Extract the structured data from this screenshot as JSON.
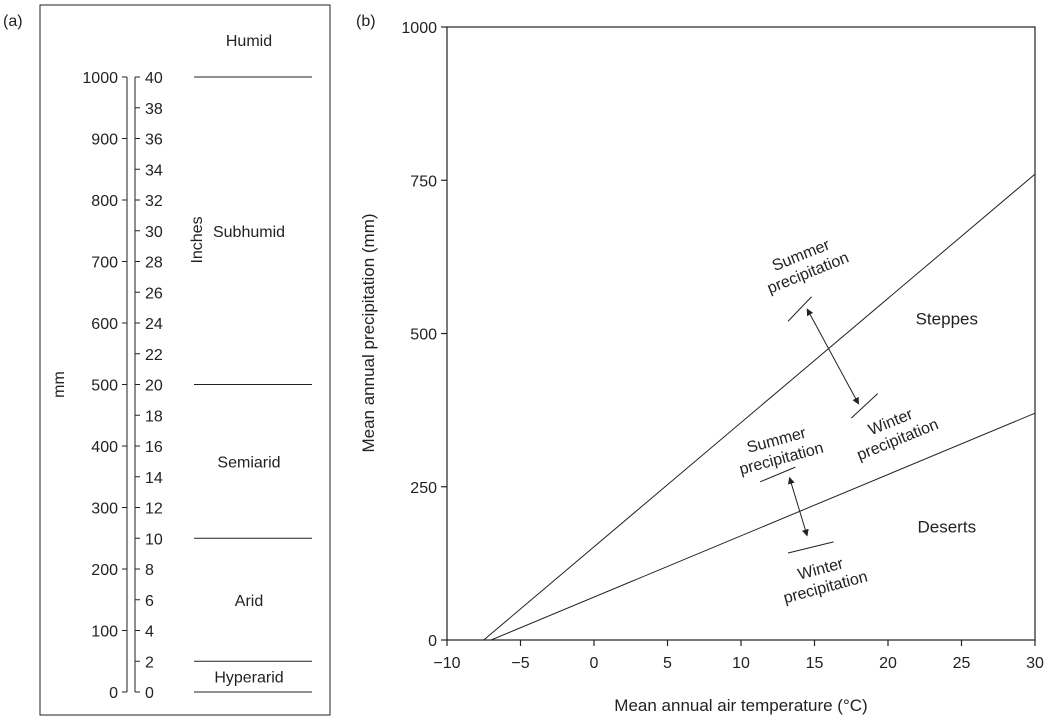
{
  "panel_a": {
    "label": "(a)",
    "left_axis": {
      "label": "mm",
      "ticks": [
        0,
        100,
        200,
        300,
        400,
        500,
        600,
        700,
        800,
        900,
        1000
      ]
    },
    "right_axis": {
      "label": "Inches",
      "ticks": [
        0,
        2,
        4,
        6,
        8,
        10,
        12,
        14,
        16,
        18,
        20,
        22,
        24,
        26,
        28,
        30,
        32,
        34,
        36,
        38,
        40
      ]
    },
    "zones": [
      {
        "name": "Hyperarid",
        "from_mm": 0,
        "to_mm": 50
      },
      {
        "name": "Arid",
        "from_mm": 50,
        "to_mm": 250
      },
      {
        "name": "Semiarid",
        "from_mm": 250,
        "to_mm": 500
      },
      {
        "name": "Subhumid",
        "from_mm": 500,
        "to_mm": 1000
      },
      {
        "name": "Humid",
        "from_mm": 1000,
        "to_mm": null
      }
    ],
    "boundaries_mm": [
      0,
      50,
      250,
      500,
      1000
    ]
  },
  "panel_b": {
    "label": "(b)",
    "chart_data": {
      "type": "line",
      "xlabel": "Mean annual air temperature (°C)",
      "ylabel": "Mean annual precipitation (mm)",
      "xlim": [
        -10,
        30
      ],
      "ylim": [
        0,
        1000
      ],
      "xticks": [
        -10,
        -5,
        0,
        5,
        10,
        15,
        20,
        25,
        30
      ],
      "yticks": [
        0,
        250,
        500,
        750,
        1000
      ],
      "xtick_labels": [
        "−10",
        "−5",
        "0",
        "5",
        "10",
        "15",
        "20",
        "25",
        "30"
      ],
      "series": [
        {
          "x": [
            -7.5,
            30
          ],
          "y": [
            0,
            760
          ]
        },
        {
          "x": [
            -7,
            30
          ],
          "y": [
            0,
            370
          ]
        }
      ],
      "regions": [
        {
          "text": "Steppes",
          "x": 24,
          "y": 515
        },
        {
          "text": "Deserts",
          "x": 24,
          "y": 175
        }
      ],
      "annotations": [
        {
          "top_line1": "Summer",
          "top_line2": "precipitation",
          "bottom_line1": "Winter",
          "bottom_line2": "precipitation",
          "arrow_from": [
            14.5,
            540
          ],
          "arrow_to": [
            18,
            385
          ],
          "top_bar": [
            [
              13.2,
              520
            ],
            [
              14.8,
              560
            ]
          ],
          "bottom_bar": [
            [
              17.5,
              362
            ],
            [
              19.3,
              402
            ]
          ],
          "top_label_at": [
            14.2,
            620
          ],
          "top_label_rotate": -22,
          "bottom_label_at": [
            20.3,
            348
          ],
          "bottom_label_rotate": -22
        },
        {
          "top_line1": "Summer",
          "top_line2": "precipitation",
          "bottom_line1": "Winter",
          "bottom_line2": "precipitation",
          "arrow_from": [
            13.3,
            265
          ],
          "arrow_to": [
            14.5,
            170
          ],
          "top_bar": [
            [
              11.3,
              258
            ],
            [
              13.7,
              282
            ]
          ],
          "bottom_bar": [
            [
              13.2,
              142
            ],
            [
              16.3,
              160
            ]
          ],
          "top_label_at": [
            12.5,
            318
          ],
          "top_label_rotate": -15,
          "bottom_label_at": [
            15.5,
            108
          ],
          "bottom_label_rotate": -15
        }
      ]
    }
  }
}
